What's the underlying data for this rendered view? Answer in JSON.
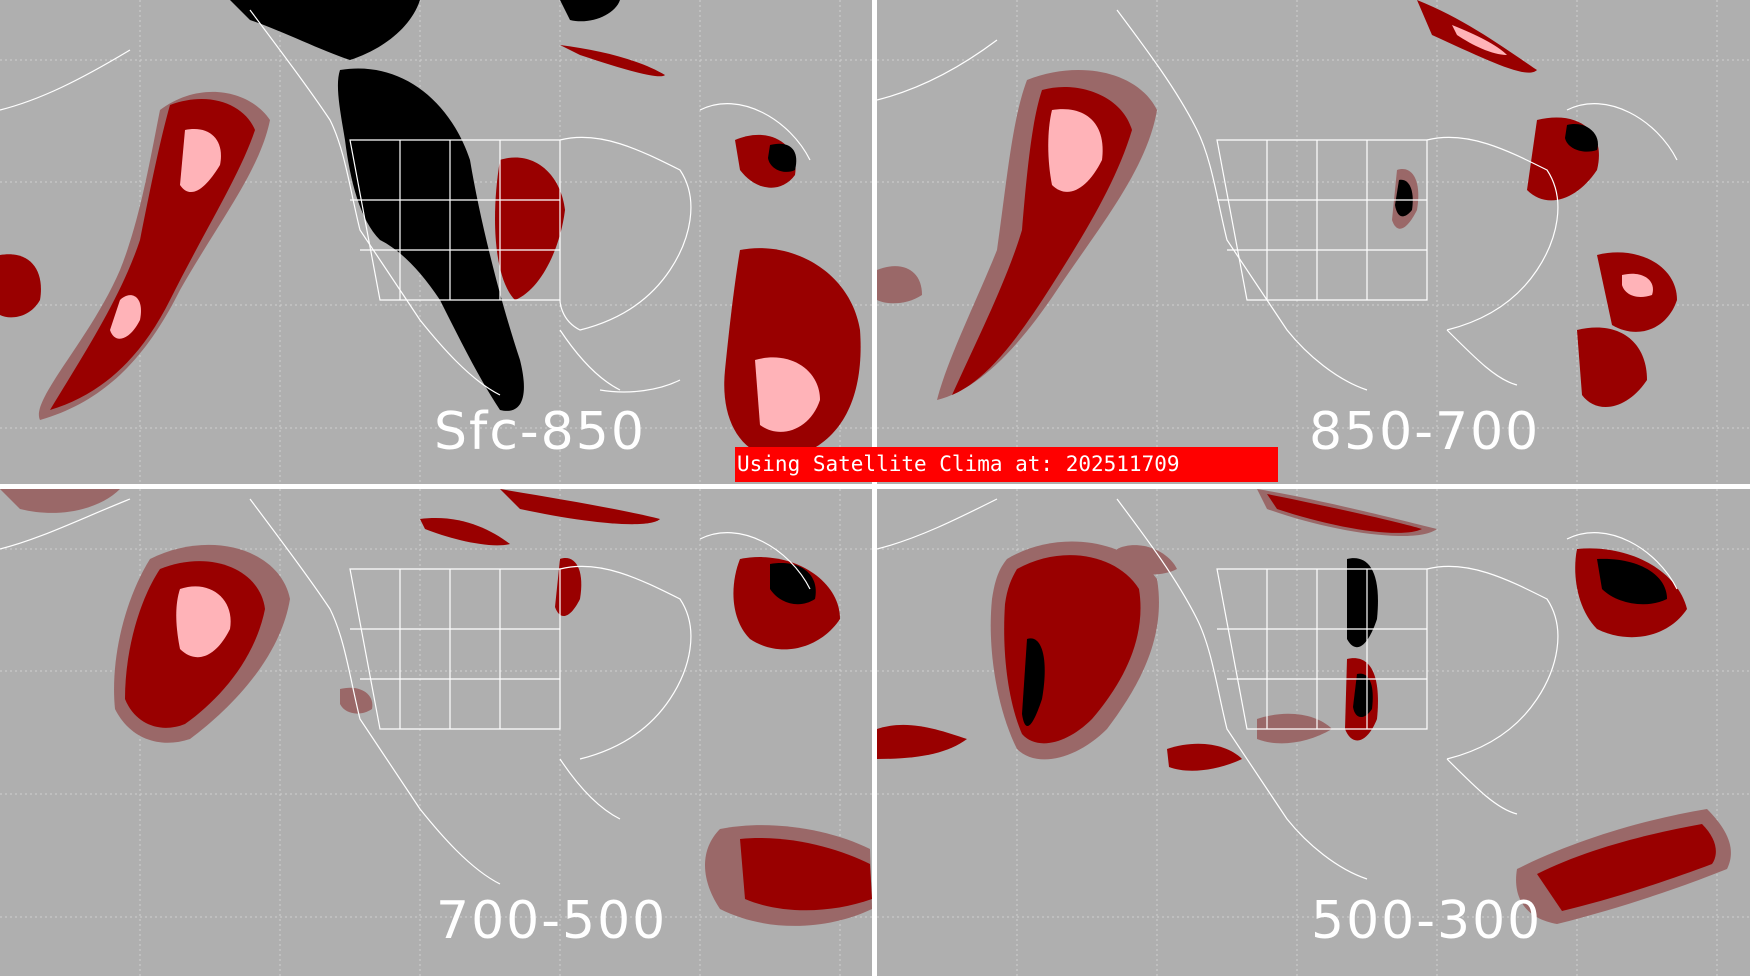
{
  "panels": [
    {
      "label": "Sfc-850"
    },
    {
      "label": "850-700"
    },
    {
      "label": "700-500"
    },
    {
      "label": "500-300"
    }
  ],
  "banner": {
    "text": "Using Satellite Clima at: 202511709"
  },
  "colors": {
    "background": "#afafaf",
    "dark_red": "#990000",
    "dull_red": "#9a6868",
    "pink": "#ffb3b8",
    "black": "#000000",
    "outline": "#ffffff",
    "banner": "#ff0000"
  }
}
